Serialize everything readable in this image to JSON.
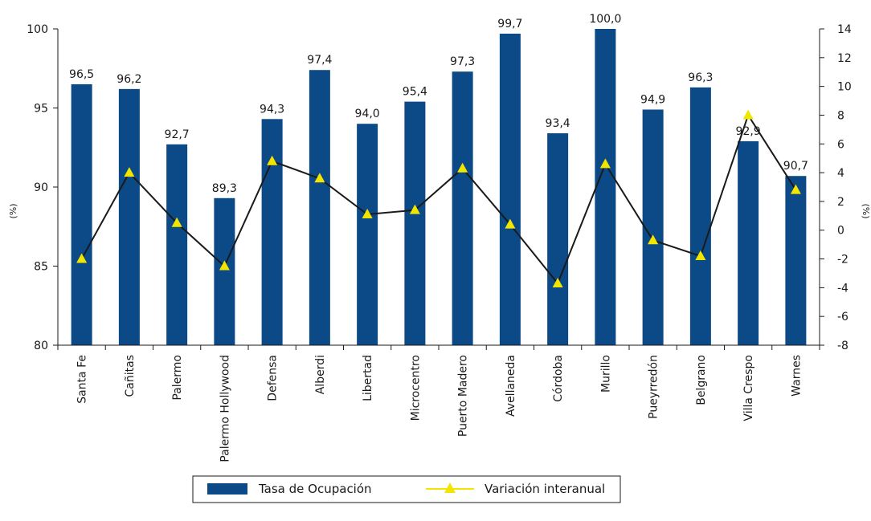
{
  "chart_data": {
    "type": "bar",
    "categories": [
      "Santa Fe",
      "Cañitas",
      "Palermo",
      "Palermo Hollywood",
      "Defensa",
      "Alberdi",
      "Libertad",
      "Microcentro",
      "Puerto Madero",
      "Avellaneda",
      "Córdoba",
      "Murillo",
      "Pueyrredón",
      "Belgrano",
      "Villa Crespo",
      "Warnes"
    ],
    "series": [
      {
        "name": "Tasa de Ocupación",
        "type": "bar",
        "axis": "left",
        "color": "#0c4a87",
        "values": [
          96.5,
          96.2,
          92.7,
          89.3,
          94.3,
          97.4,
          94.0,
          95.4,
          97.3,
          99.7,
          93.4,
          100.0,
          94.9,
          96.3,
          92.9,
          90.7
        ],
        "labels": [
          "96,5",
          "96,2",
          "92,7",
          "89,3",
          "94,3",
          "97,4",
          "94,0",
          "95,4",
          "97,3",
          "99,7",
          "93,4",
          "100,0",
          "94,9",
          "96,3",
          "92,9",
          "90,7"
        ]
      },
      {
        "name": "Variación interanual",
        "type": "line",
        "axis": "right",
        "color": "#1a1a1a",
        "marker_color": "#f2e600",
        "values": [
          -2.0,
          4.0,
          0.5,
          -2.5,
          4.8,
          3.6,
          1.1,
          1.4,
          4.3,
          0.4,
          -3.7,
          4.6,
          -0.7,
          -1.8,
          8.0,
          2.8
        ]
      }
    ],
    "y_left": {
      "label": "(%)",
      "ylim": [
        80,
        100
      ],
      "ticks": [
        "80",
        "85",
        "90",
        "95",
        "100"
      ]
    },
    "y_right": {
      "label": "(%)",
      "ylim": [
        -8,
        14
      ],
      "ticks": [
        "-8",
        "-6",
        "-4",
        "-2",
        "0",
        "2",
        "4",
        "6",
        "8",
        "10",
        "12",
        "14"
      ]
    },
    "legend": {
      "placement": "bottom-center",
      "entries": [
        "Tasa de Ocupación",
        "Variación interanual"
      ]
    },
    "grid": false
  }
}
